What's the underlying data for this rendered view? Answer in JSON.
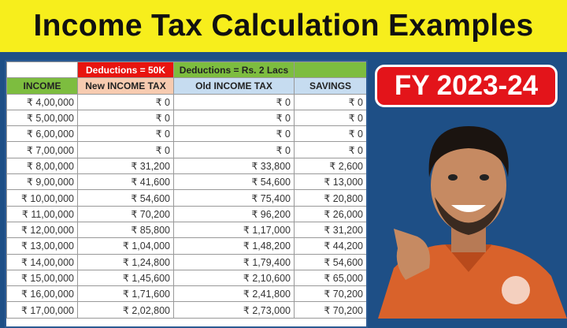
{
  "title": "Income Tax Calculation Examples",
  "badge": "FY 2023-24",
  "table": {
    "group_headers": [
      "",
      "Deductions = 50K",
      "Deductions = Rs. 2 Lacs",
      ""
    ],
    "columns": [
      "INCOME",
      "New INCOME TAX",
      "Old INCOME TAX",
      "SAVINGS"
    ],
    "rows": [
      [
        "₹ 4,00,000",
        "₹ 0",
        "₹ 0",
        "₹ 0"
      ],
      [
        "₹ 5,00,000",
        "₹ 0",
        "₹ 0",
        "₹ 0"
      ],
      [
        "₹ 6,00,000",
        "₹ 0",
        "₹ 0",
        "₹ 0"
      ],
      [
        "₹ 7,00,000",
        "₹ 0",
        "₹ 0",
        "₹ 0"
      ],
      [
        "₹ 8,00,000",
        "₹ 31,200",
        "₹ 33,800",
        "₹ 2,600"
      ],
      [
        "₹ 9,00,000",
        "₹ 41,600",
        "₹ 54,600",
        "₹ 13,000"
      ],
      [
        "₹ 10,00,000",
        "₹ 54,600",
        "₹ 75,400",
        "₹ 20,800"
      ],
      [
        "₹ 11,00,000",
        "₹ 70,200",
        "₹ 96,200",
        "₹ 26,000"
      ],
      [
        "₹ 12,00,000",
        "₹ 85,800",
        "₹ 1,17,000",
        "₹ 31,200"
      ],
      [
        "₹ 13,00,000",
        "₹ 1,04,000",
        "₹ 1,48,200",
        "₹ 44,200"
      ],
      [
        "₹ 14,00,000",
        "₹ 1,24,800",
        "₹ 1,79,400",
        "₹ 54,600"
      ],
      [
        "₹ 15,00,000",
        "₹ 1,45,600",
        "₹ 2,10,600",
        "₹ 65,000"
      ],
      [
        "₹ 16,00,000",
        "₹ 1,71,600",
        "₹ 2,41,800",
        "₹ 70,200"
      ],
      [
        "₹ 17,00,000",
        "₹ 2,02,800",
        "₹ 2,73,000",
        "₹ 70,200"
      ]
    ]
  },
  "colors": {
    "title_bg": "#f7ee1c",
    "background": "#1e4f86",
    "badge": "#e3141a"
  }
}
